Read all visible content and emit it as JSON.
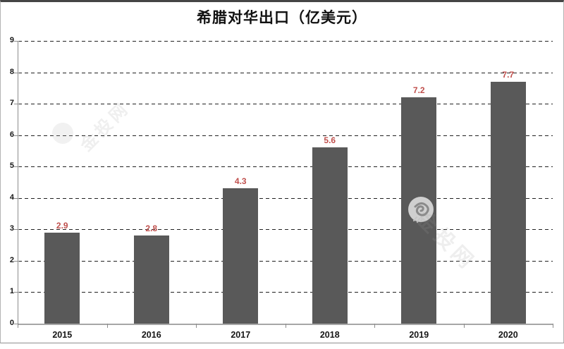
{
  "title": "希腊对华出口（亿美元）",
  "watermark": {
    "text": "金投网",
    "logo": "swirl-bird-icon"
  },
  "colors": {
    "bar": "#595959",
    "value_label": "#c0504d",
    "gridline": "#212121",
    "axis": "#8c8c8c"
  },
  "chart_data": {
    "type": "bar",
    "title": "希腊对华出口（亿美元）",
    "categories": [
      "2015",
      "2016",
      "2017",
      "2018",
      "2019",
      "2020"
    ],
    "values": [
      2.9,
      2.8,
      4.3,
      5.6,
      7.2,
      7.7
    ],
    "value_labels": [
      "2.9",
      "2.8",
      "4.3",
      "5.6",
      "7.2",
      "7.7"
    ],
    "xlabel": "",
    "ylabel": "",
    "ylim": [
      0,
      9
    ],
    "yticks": [
      0,
      1,
      2,
      3,
      4,
      5,
      6,
      7,
      8,
      9
    ],
    "grid": "horizontal-dashed",
    "legend": "none",
    "bar_color": "#595959",
    "label_color": "#c0504d"
  }
}
